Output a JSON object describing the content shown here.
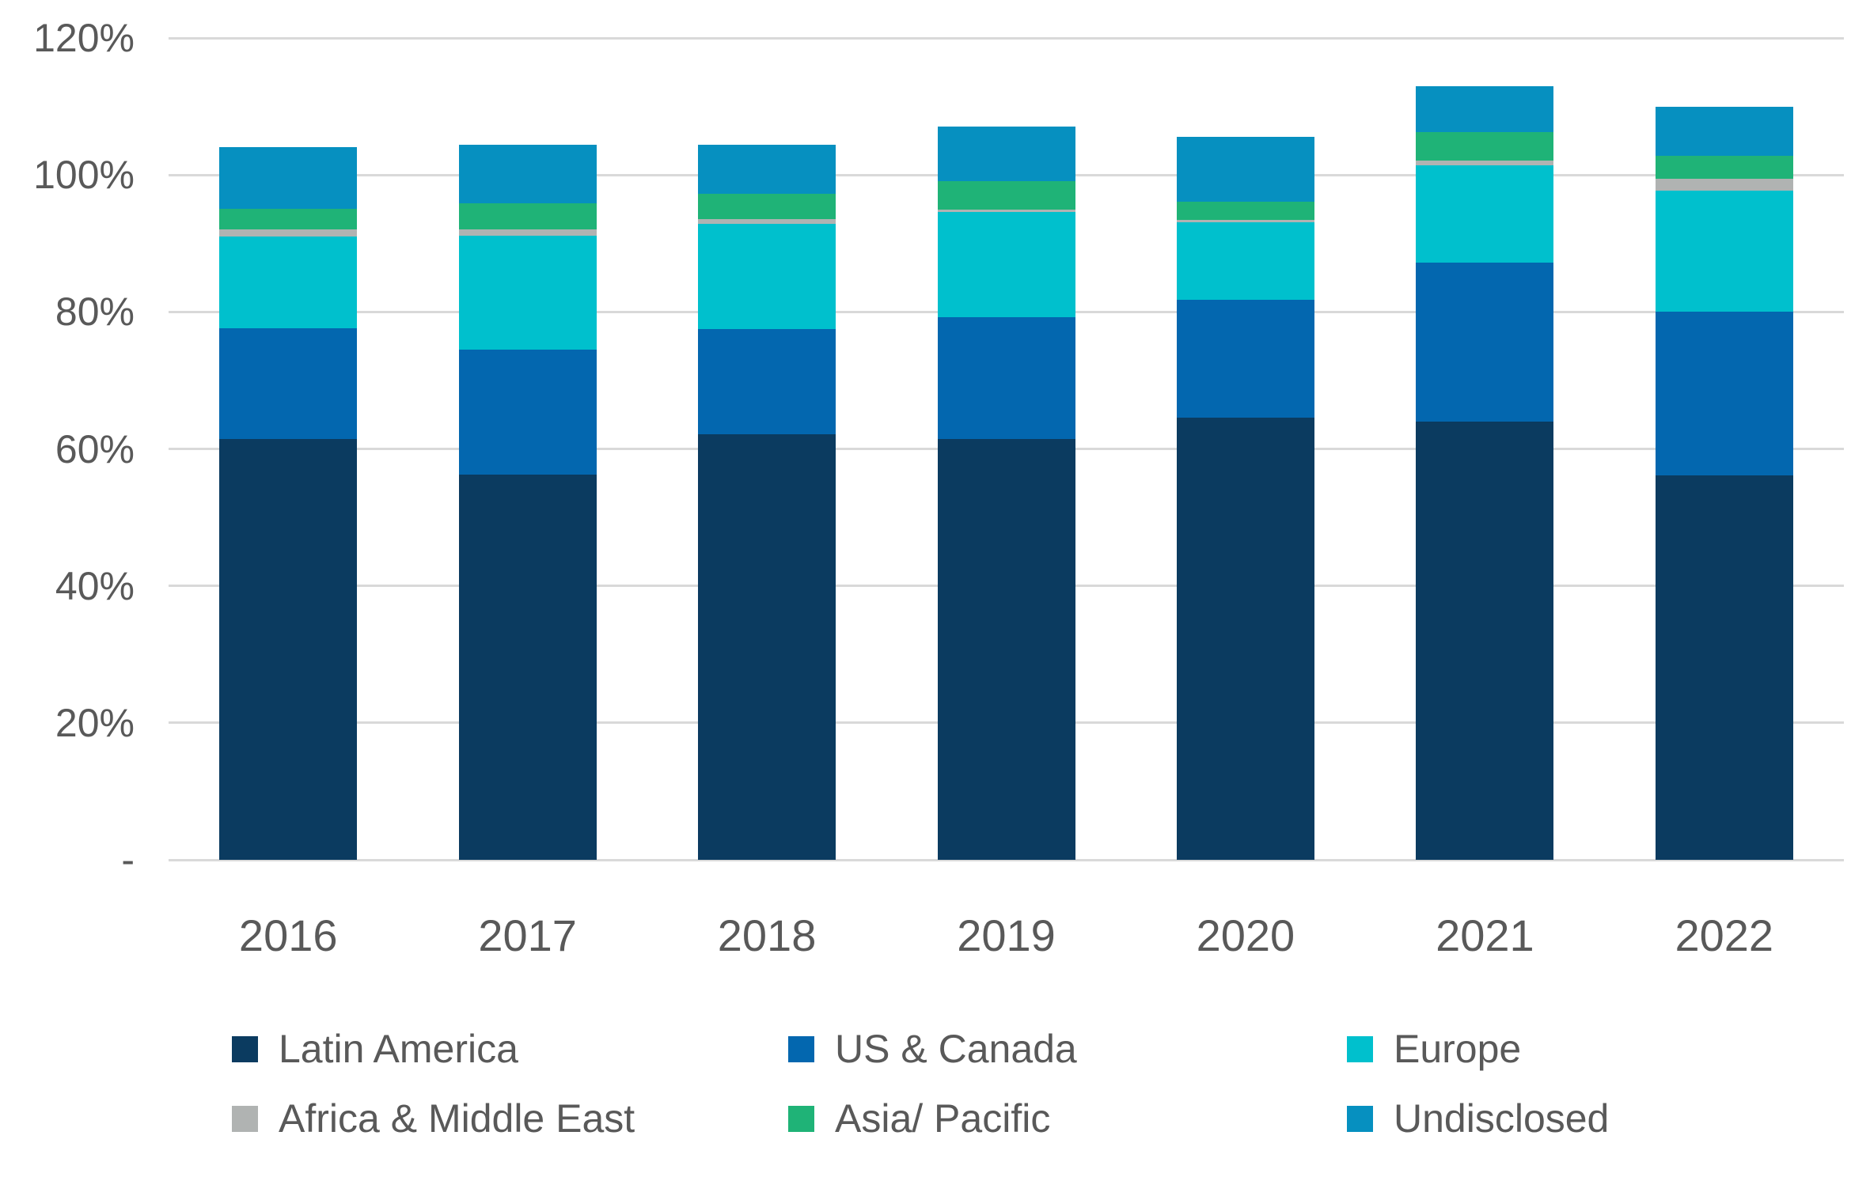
{
  "chart_data": {
    "type": "bar",
    "stacked": true,
    "title": "",
    "xlabel": "",
    "ylabel": "",
    "ylim": [
      0,
      120
    ],
    "grid": true,
    "legend_position": "bottom",
    "categories": [
      "2016",
      "2017",
      "2018",
      "2019",
      "2020",
      "2021",
      "2022"
    ],
    "y_ticks": [
      {
        "label": "120%",
        "value": 120
      },
      {
        "label": "100%",
        "value": 100
      },
      {
        "label": "80%",
        "value": 80
      },
      {
        "label": "60%",
        "value": 60
      },
      {
        "label": "40%",
        "value": 40
      },
      {
        "label": "20%",
        "value": 20
      },
      {
        "label": "-",
        "value": 0
      }
    ],
    "series": [
      {
        "name": "Latin America",
        "color": "#0b3b60",
        "values": [
          61.5,
          56.2,
          62.1,
          61.5,
          64.6,
          64.0,
          56.1
        ]
      },
      {
        "name": "US & Canada",
        "color": "#0367af",
        "values": [
          16.1,
          18.3,
          15.4,
          17.7,
          17.2,
          23.2,
          23.9
        ]
      },
      {
        "name": "Europe",
        "color": "#00c0cd",
        "values": [
          13.4,
          16.6,
          15.4,
          15.4,
          11.3,
          14.2,
          17.7
        ]
      },
      {
        "name": "Africa & Middle East",
        "color": "#b0b3b2",
        "values": [
          1.0,
          1.0,
          0.6,
          0.3,
          0.3,
          0.7,
          1.7
        ]
      },
      {
        "name": "Asia/ Pacific",
        "color": "#1fb377",
        "values": [
          3.0,
          3.8,
          3.8,
          4.2,
          2.7,
          4.2,
          3.4
        ]
      },
      {
        "name": "Undisclosed",
        "color": "#0690c0",
        "values": [
          9.1,
          8.5,
          7.1,
          8.0,
          9.5,
          6.6,
          7.1
        ]
      }
    ],
    "stack_totals": [
      104.1,
      104.4,
      104.4,
      107.1,
      105.6,
      112.9,
      109.9
    ],
    "colors": {
      "gridline": "#d9d9d9",
      "axis_text": "#595959",
      "background": "#ffffff"
    }
  }
}
